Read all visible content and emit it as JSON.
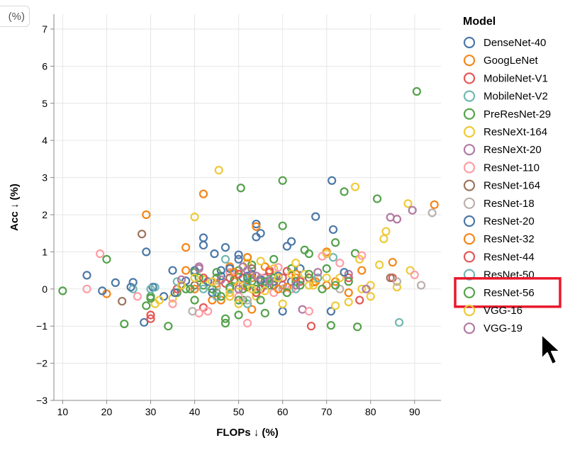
{
  "corner_label": "(%)",
  "chart_data": {
    "type": "scatter",
    "title": "",
    "xlabel": "FLOPs ↓ (%)",
    "ylabel": "Acc ↓ (%)",
    "xlim": [
      8,
      96
    ],
    "ylim": [
      -3,
      7.4
    ],
    "xticks": [
      10,
      20,
      30,
      40,
      50,
      60,
      70,
      80,
      90
    ],
    "yticks": [
      -3,
      -2,
      -1,
      0,
      1,
      2,
      3,
      4,
      5,
      6,
      7
    ],
    "grid": true,
    "legend_title": "Model",
    "legend_position": "right",
    "highlighted_series": "ResNet-56",
    "series": [
      {
        "name": "DenseNet-40",
        "color": "#4c78a8",
        "points": [
          [
            15.5,
            0.37
          ],
          [
            22,
            0.17
          ],
          [
            26,
            0.18
          ],
          [
            29,
            1.0
          ],
          [
            28.5,
            -0.9
          ],
          [
            35,
            0.5
          ],
          [
            42,
            1.38
          ],
          [
            42,
            1.18
          ],
          [
            44.5,
            0.95
          ],
          [
            47,
            1.12
          ],
          [
            50,
            0.92
          ],
          [
            52,
            0.35
          ],
          [
            54,
            1.75
          ],
          [
            54,
            1.4
          ],
          [
            55,
            1.5
          ],
          [
            58,
            0.2
          ],
          [
            61,
            1.15
          ],
          [
            62,
            1.28
          ],
          [
            67.5,
            1.95
          ],
          [
            71.2,
            2.92
          ],
          [
            71.5,
            1.6
          ],
          [
            60,
            -0.6
          ],
          [
            71,
            -0.6
          ],
          [
            64,
            0.55
          ],
          [
            46,
            0.5
          ]
        ]
      },
      {
        "name": "GoogLeNet",
        "color": "#f58518",
        "points": [
          [
            20,
            -0.13
          ],
          [
            29,
            2.0
          ],
          [
            42,
            2.56
          ],
          [
            54,
            1.68
          ],
          [
            94.5,
            2.27
          ],
          [
            38,
            1.12
          ],
          [
            48,
            0.6
          ],
          [
            53,
            -0.55
          ],
          [
            58,
            0.3
          ],
          [
            67,
            0.18
          ],
          [
            70,
            1.0
          ],
          [
            78,
            0.5
          ],
          [
            85,
            0.72
          ],
          [
            49,
            0.2
          ],
          [
            44,
            -0.3
          ],
          [
            63,
            0.4
          ],
          [
            72,
            0.2
          ],
          [
            75,
            -0.1
          ]
        ]
      },
      {
        "name": "MobileNet-V1",
        "color": "#e45756",
        "points": [
          [
            30,
            -0.8
          ],
          [
            42,
            -0.5
          ],
          [
            52,
            0.05
          ],
          [
            57,
            0.5
          ],
          [
            61,
            0.48
          ],
          [
            66.5,
            -1.0
          ],
          [
            75,
            0.3
          ],
          [
            77.5,
            -0.3
          ],
          [
            85,
            0.3
          ],
          [
            48,
            -0.2
          ]
        ]
      },
      {
        "name": "MobileNet-V2",
        "color": "#72b7b2",
        "points": [
          [
            26,
            0.0
          ],
          [
            31,
            0.05
          ],
          [
            47,
            0.8
          ],
          [
            55,
            0.0
          ],
          [
            71.5,
            0.85
          ],
          [
            86.5,
            -0.9
          ],
          [
            64,
            0.25
          ],
          [
            52,
            -0.4
          ],
          [
            40,
            0.1
          ]
        ]
      },
      {
        "name": "PreResNet-29",
        "color": "#54a24b",
        "points": [
          [
            10,
            -0.05
          ],
          [
            20,
            0.8
          ],
          [
            24,
            -0.94
          ],
          [
            30,
            -0.2
          ],
          [
            34,
            -1.0
          ],
          [
            36,
            -0.1
          ],
          [
            40,
            -0.3
          ],
          [
            42,
            0.1
          ],
          [
            45,
            0.3
          ],
          [
            47,
            -0.8
          ],
          [
            47,
            -0.92
          ],
          [
            49,
            0.25
          ],
          [
            50.5,
            2.72
          ],
          [
            50,
            0.5
          ],
          [
            51,
            -0.3
          ],
          [
            52,
            0.85
          ],
          [
            53,
            0.65
          ],
          [
            54,
            -0.1
          ],
          [
            55,
            0.2
          ],
          [
            56,
            -0.65
          ],
          [
            57,
            0.1
          ],
          [
            60,
            2.92
          ],
          [
            60,
            1.7
          ],
          [
            62,
            0.55
          ],
          [
            63,
            0.2
          ],
          [
            65,
            1.05
          ],
          [
            66,
            0.95
          ],
          [
            70,
            0.55
          ],
          [
            72,
            1.25
          ],
          [
            74,
            2.62
          ],
          [
            76.5,
            0.96
          ],
          [
            77,
            -1.02
          ],
          [
            81.5,
            2.43
          ],
          [
            90.5,
            5.32
          ],
          [
            71,
            -0.98
          ],
          [
            58,
            0.8
          ],
          [
            52,
            0.1
          ],
          [
            45,
            -0.1
          ],
          [
            38,
            0.0
          ]
        ]
      },
      {
        "name": "ResNeXt-164",
        "color": "#eeca3b",
        "points": [
          [
            31,
            -0.4
          ],
          [
            35,
            -0.25
          ],
          [
            40,
            1.94
          ],
          [
            45.5,
            3.2
          ],
          [
            52,
            0.7
          ],
          [
            60,
            -0.4
          ],
          [
            63,
            0.7
          ],
          [
            65,
            0.4
          ],
          [
            70,
            0.95
          ],
          [
            73,
            0.3
          ],
          [
            76.5,
            2.75
          ],
          [
            80,
            0.1
          ],
          [
            83,
            1.35
          ],
          [
            83.5,
            1.55
          ],
          [
            86,
            0.05
          ],
          [
            88.5,
            2.3
          ],
          [
            89,
            0.5
          ],
          [
            77.5,
            0.8
          ],
          [
            54,
            -0.2
          ],
          [
            58,
            0.55
          ],
          [
            48,
            -0.2
          ],
          [
            42,
            0.25
          ],
          [
            67,
            0.1
          ],
          [
            72,
            -0.45
          ],
          [
            80,
            -0.2
          ]
        ]
      },
      {
        "name": "ResNeXt-20",
        "color": "#b279a2",
        "points": [
          [
            41,
            0.6
          ],
          [
            56,
            0.3
          ],
          [
            60,
            0.1
          ],
          [
            64.5,
            -0.55
          ],
          [
            84.5,
            1.93
          ],
          [
            86,
            1.88
          ],
          [
            89.5,
            2.12
          ],
          [
            75,
            0.4
          ],
          [
            51,
            0.6
          ],
          [
            44,
            0.2
          ]
        ]
      },
      {
        "name": "ResNet-110",
        "color": "#ff9da6",
        "points": [
          [
            15.5,
            0.0
          ],
          [
            18.5,
            0.95
          ],
          [
            27,
            -0.2
          ],
          [
            35,
            -0.4
          ],
          [
            41,
            -0.65
          ],
          [
            43,
            -0.6
          ],
          [
            50,
            -0.2
          ],
          [
            52,
            -0.92
          ],
          [
            59,
            0.58
          ],
          [
            62,
            0.0
          ],
          [
            66,
            -0.6
          ],
          [
            69,
            0.88
          ],
          [
            73,
            0.7
          ],
          [
            78,
            0.9
          ],
          [
            90,
            0.38
          ],
          [
            48,
            0.45
          ],
          [
            55,
            0.3
          ],
          [
            58,
            -0.1
          ]
        ]
      },
      {
        "name": "ResNet-164",
        "color": "#9d755d",
        "points": [
          [
            23.5,
            -0.33
          ],
          [
            28,
            1.48
          ],
          [
            48,
            0.3
          ],
          [
            53,
            0.55
          ],
          [
            58,
            0.1
          ],
          [
            66,
            0.3
          ],
          [
            84.5,
            0.3
          ],
          [
            40,
            0.1
          ]
        ]
      },
      {
        "name": "ResNet-18",
        "color": "#bab0ac",
        "points": [
          [
            39.5,
            -0.6
          ],
          [
            52,
            -0.3
          ],
          [
            60,
            0.0
          ],
          [
            73,
            0.0
          ],
          [
            86,
            0.2
          ],
          [
            91.5,
            0.1
          ],
          [
            94,
            2.05
          ],
          [
            45,
            0.05
          ]
        ]
      },
      {
        "name": "ResNet-20",
        "color": "#4c78a8",
        "points": [
          [
            19,
            -0.05
          ],
          [
            25.5,
            0.05
          ],
          [
            30.5,
            0.05
          ],
          [
            33,
            -0.2
          ],
          [
            38,
            0.22
          ],
          [
            40,
            0.5
          ],
          [
            43,
            0.2
          ],
          [
            46,
            0.35
          ],
          [
            48,
            0.55
          ],
          [
            50,
            0.8
          ],
          [
            51,
            0.3
          ],
          [
            53,
            0.4
          ],
          [
            55,
            0.25
          ],
          [
            56,
            0.1
          ],
          [
            59,
            0.35
          ],
          [
            62,
            0.2
          ],
          [
            68,
            0.3
          ],
          [
            74,
            0.45
          ],
          [
            35.5,
            -0.1
          ],
          [
            44,
            -0.1
          ]
        ]
      },
      {
        "name": "ResNet-32",
        "color": "#f58518",
        "points": [
          [
            38,
            0.5
          ],
          [
            40,
            0.0
          ],
          [
            45,
            0.15
          ],
          [
            49,
            0.45
          ],
          [
            51,
            0.1
          ],
          [
            53,
            0.3
          ],
          [
            56,
            0.6
          ],
          [
            59,
            0.0
          ],
          [
            63,
            0.3
          ],
          [
            67.5,
            0.2
          ],
          [
            70,
            0.1
          ],
          [
            52,
            0.85
          ],
          [
            46,
            -0.3
          ],
          [
            61,
            0.05
          ]
        ]
      },
      {
        "name": "ResNet-44",
        "color": "#e45756",
        "points": [
          [
            30,
            -0.7
          ],
          [
            36,
            0.0
          ],
          [
            42,
            0.3
          ],
          [
            47,
            0.15
          ],
          [
            50,
            0.4
          ],
          [
            55,
            0.0
          ],
          [
            57,
            0.45
          ],
          [
            60,
            0.3
          ],
          [
            64,
            0.2
          ],
          [
            54,
            -0.1
          ]
        ]
      },
      {
        "name": "ResNet-50",
        "color": "#72b7b2",
        "points": [
          [
            30,
            0.0
          ],
          [
            36,
            0.2
          ],
          [
            42,
            0.0
          ],
          [
            48,
            0.0
          ],
          [
            52,
            0.2
          ],
          [
            57,
            0.25
          ],
          [
            63,
            0.0
          ],
          [
            68,
            0.3
          ],
          [
            45,
            -0.2
          ]
        ]
      },
      {
        "name": "ResNet-56",
        "color": "#54a24b",
        "points": [
          [
            29,
            -0.45
          ],
          [
            30,
            -0.25
          ],
          [
            37,
            0.1
          ],
          [
            40,
            0.45
          ],
          [
            41,
            0.3
          ],
          [
            44,
            0.0
          ],
          [
            46,
            -0.2
          ],
          [
            48,
            0.05
          ],
          [
            50,
            -0.3
          ],
          [
            50,
            -0.7
          ],
          [
            51,
            0.0
          ],
          [
            52,
            0.3
          ],
          [
            53,
            0.2
          ],
          [
            54,
            0.0
          ],
          [
            55,
            -0.3
          ],
          [
            56,
            0.2
          ],
          [
            58,
            0.3
          ],
          [
            61,
            -0.1
          ],
          [
            64,
            0.1
          ],
          [
            66,
            0.4
          ],
          [
            69,
            0.0
          ],
          [
            72,
            0.1
          ],
          [
            75,
            0.2
          ],
          [
            45,
            0.45
          ],
          [
            39,
            0.0
          ]
        ]
      },
      {
        "name": "VGG-16",
        "color": "#eeca3b",
        "points": [
          [
            32,
            -0.3
          ],
          [
            37,
            0.1
          ],
          [
            40,
            0.3
          ],
          [
            44,
            0.2
          ],
          [
            48,
            -0.1
          ],
          [
            50,
            0.1
          ],
          [
            53,
            0.0
          ],
          [
            56,
            -0.05
          ],
          [
            59,
            0.3
          ],
          [
            62,
            0.4
          ],
          [
            66,
            0.1
          ],
          [
            70,
            0.3
          ],
          [
            75,
            -0.35
          ],
          [
            78,
            0.0
          ],
          [
            82,
            0.65
          ],
          [
            55,
            0.75
          ],
          [
            50,
            -0.4
          ]
        ]
      },
      {
        "name": "VGG-19",
        "color": "#b279a2",
        "points": [
          [
            37,
            0.25
          ],
          [
            41,
            0.55
          ],
          [
            46,
            0.25
          ],
          [
            50,
            0.0
          ],
          [
            54,
            0.35
          ],
          [
            57,
            0.2
          ],
          [
            63,
            0.1
          ],
          [
            68,
            0.45
          ],
          [
            79,
            0.0
          ],
          [
            52,
            0.5
          ]
        ]
      }
    ]
  }
}
